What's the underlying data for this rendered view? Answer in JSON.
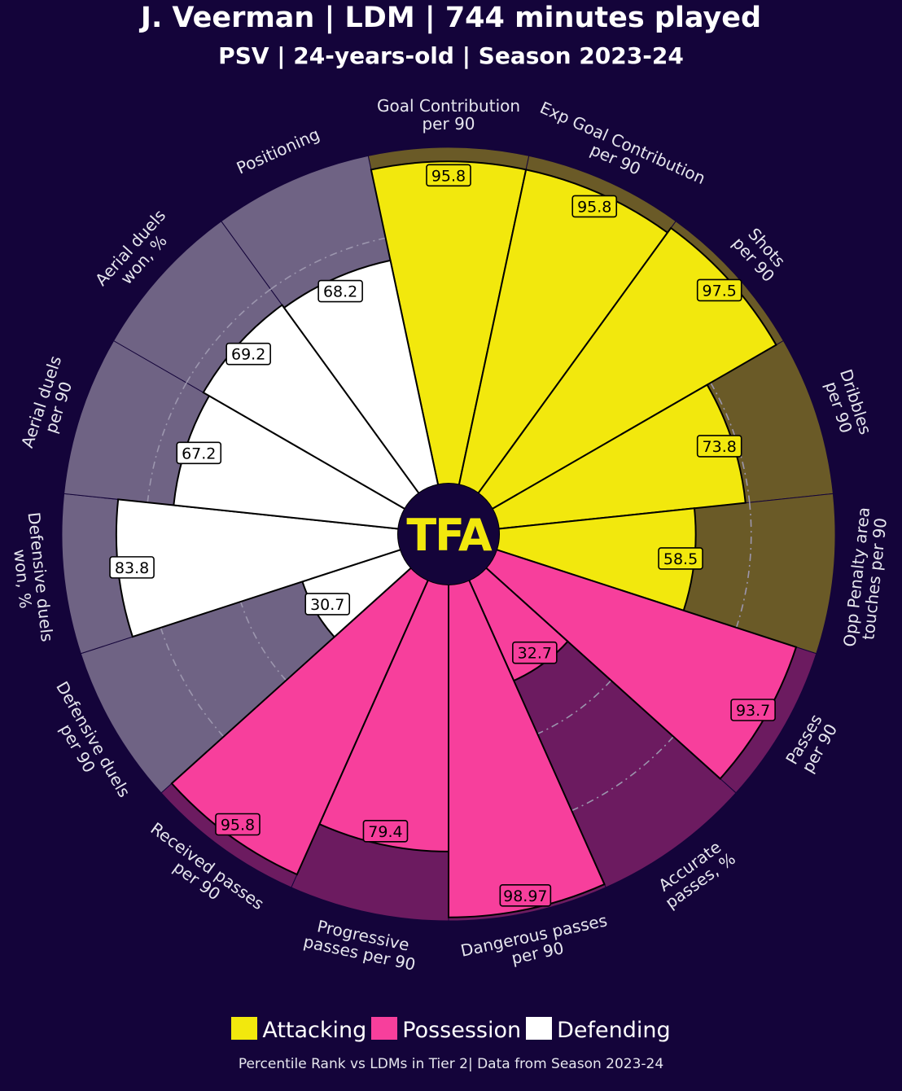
{
  "header": {
    "title": "J. Veerman | LDM | 744 minutes played",
    "subtitle": "PSV | 24-years-old | Season 2023-24"
  },
  "logo": {
    "text": "TFA"
  },
  "legend": [
    {
      "label": "Attacking",
      "color": "#f2e80d"
    },
    {
      "label": "Possession",
      "color": "#f73f9c"
    },
    {
      "label": "Defending",
      "color": "#ffffff"
    }
  ],
  "footnote": "Percentile Rank vs LDMs in Tier 2| Data from Season 2023-24",
  "chart_data": {
    "type": "pizza",
    "range": [
      0,
      100
    ],
    "grid_rings": [
      25,
      50,
      75
    ],
    "categories": {
      "Attacking": {
        "fill": "#f2e80d",
        "background": "#6a5a27"
      },
      "Possession": {
        "fill": "#f73f9c",
        "background": "#6c1b60"
      },
      "Defending": {
        "fill": "#ffffff",
        "background": "#6f6384"
      }
    },
    "slices": [
      {
        "label": "Goal Contribution\nper 90",
        "value": 95.8,
        "display": "95.8",
        "category": "Attacking"
      },
      {
        "label": "Exp Goal Contribution\nper 90",
        "value": 95.8,
        "display": "95.8",
        "category": "Attacking"
      },
      {
        "label": "Shots\nper 90",
        "value": 97.5,
        "display": "97.5",
        "category": "Attacking"
      },
      {
        "label": "Dribbles\nper 90",
        "value": 73.8,
        "display": "73.8",
        "category": "Attacking"
      },
      {
        "label": "Opp Penalty area\ntouches per 90",
        "value": 58.5,
        "display": "58.5",
        "category": "Attacking"
      },
      {
        "label": "Passes\nper 90",
        "value": 93.7,
        "display": "93.7",
        "category": "Possession"
      },
      {
        "label": "Accurate\npasses, %",
        "value": 32.7,
        "display": "32.7",
        "category": "Possession"
      },
      {
        "label": "Dangerous passes\nper 90",
        "value": 98.97,
        "display": "98.97",
        "category": "Possession"
      },
      {
        "label": "Progressive\npasses per 90",
        "value": 79.4,
        "display": "79.4",
        "category": "Possession"
      },
      {
        "label": "Received passes\nper 90",
        "value": 95.8,
        "display": "95.8",
        "category": "Possession"
      },
      {
        "label": "Defensive duels\nper 90",
        "value": 30.7,
        "display": "30.7",
        "category": "Defending"
      },
      {
        "label": "Defensive duels\nwon, %",
        "value": 83.8,
        "display": "83.8",
        "category": "Defending"
      },
      {
        "label": "Aerial duels\nper 90",
        "value": 67.2,
        "display": "67.2",
        "category": "Defending"
      },
      {
        "label": "Aerial duels\nwon, %",
        "value": 69.2,
        "display": "69.2",
        "category": "Defending"
      },
      {
        "label": "Positioning",
        "value": 68.2,
        "display": "68.2",
        "category": "Defending"
      }
    ]
  }
}
